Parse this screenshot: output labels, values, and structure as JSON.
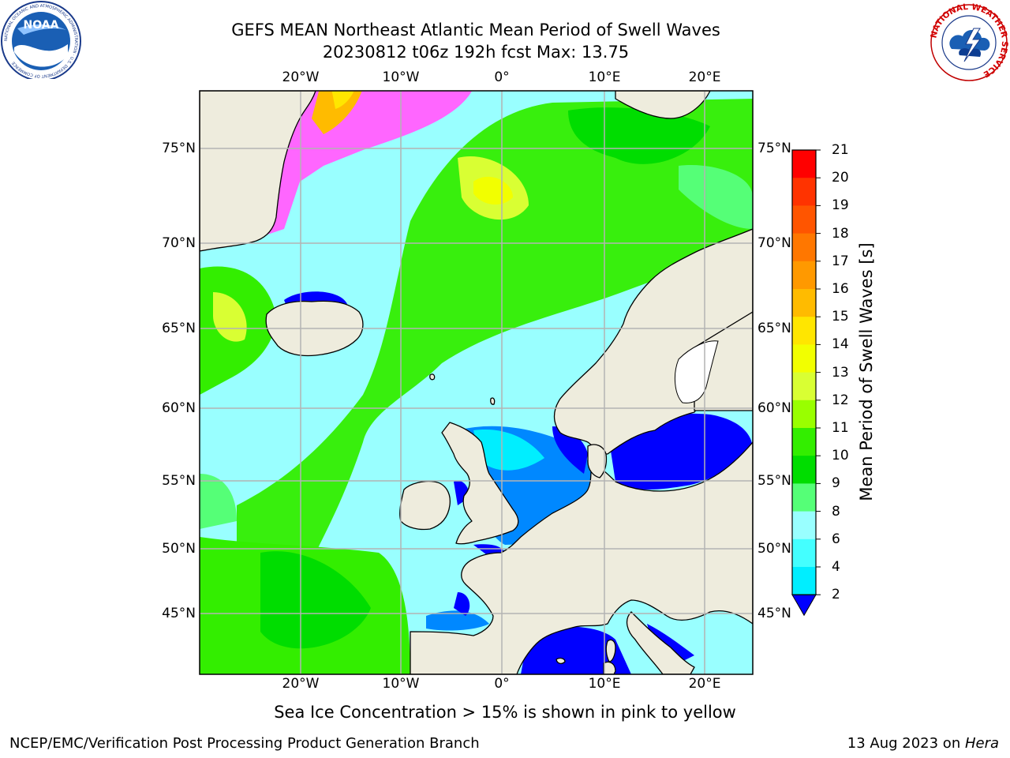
{
  "header": {
    "title_line1": "GEFS MEAN Northeast Atlantic Mean Period of Swell Waves",
    "title_line2": "20230812 t06z 192h fcst   Max: 13.75"
  },
  "logos": {
    "noaa_text": "NOAA",
    "noaa_ring_text": "NATIONAL OCEANIC AND ATMOSPHERIC ADMINISTRATION · U.S. DEPARTMENT OF COMMERCE",
    "nws_ring_text": "NATIONAL WEATHER SERVICE"
  },
  "map": {
    "lon_labels": [
      "20°W",
      "10°W",
      "0°",
      "10°E",
      "20°E"
    ],
    "lat_labels": [
      "75°N",
      "70°N",
      "65°N",
      "60°N",
      "55°N",
      "50°N",
      "45°N"
    ],
    "colors": {
      "land": "#eeecdd",
      "coast": "#000000",
      "grid": "#b3b3b3"
    }
  },
  "colorbar": {
    "title": "Mean Period of Swell Waves [s]",
    "tick_labels": [
      "21",
      "20",
      "19",
      "18",
      "17",
      "16",
      "15",
      "14",
      "13",
      "12",
      "11",
      "10",
      "9",
      "8",
      "6",
      "4",
      "2"
    ],
    "colors": [
      "#ff0000",
      "#ff3300",
      "#ff5500",
      "#ff7700",
      "#ff9900",
      "#ffbb00",
      "#ffe600",
      "#f2ff00",
      "#d9ff33",
      "#99ff00",
      "#33ee00",
      "#00dd00",
      "#55ff77",
      "#99ffff",
      "#44ffff",
      "#00eeff",
      "#0088ff",
      "#0000ff"
    ]
  },
  "footer": {
    "caption": "Sea Ice Concentration > 15% is shown in pink to yellow",
    "credit": "NCEP/EMC/Verification Post Processing Product Generation Branch",
    "date": "13 Aug 2023 on ",
    "machine": "Hera"
  }
}
